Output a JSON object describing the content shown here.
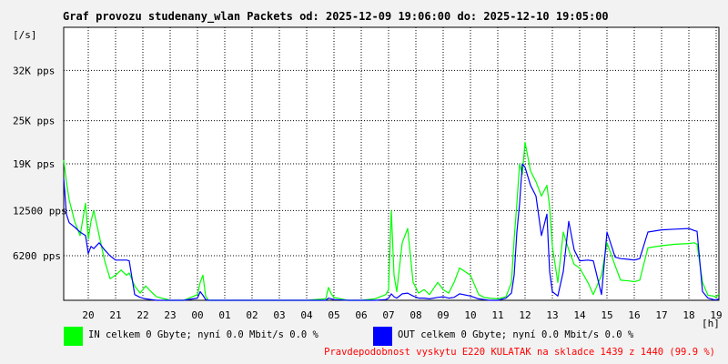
{
  "chart_data": {
    "type": "line",
    "title": "Graf provozu studenany_wlan Packets od: 2025-12-09 19:06:00 do: 2025-12-10 19:05:00",
    "ylabel": "[/s]",
    "xlabel": "[h]",
    "ylim": [
      0,
      38000
    ],
    "y_ticks": [
      {
        "value": 6200,
        "label": "6200 pps"
      },
      {
        "value": 12500,
        "label": "12500 pps"
      },
      {
        "value": 19000,
        "label": "19K pps"
      },
      {
        "value": 25000,
        "label": "25K pps"
      },
      {
        "value": 32000,
        "label": "32K pps"
      }
    ],
    "x_range_hours": [
      19.1,
      43.1
    ],
    "x_ticks": [
      "20",
      "21",
      "22",
      "23",
      "00",
      "01",
      "02",
      "03",
      "04",
      "05",
      "06",
      "07",
      "08",
      "09",
      "10",
      "11",
      "12",
      "13",
      "14",
      "15",
      "16",
      "17",
      "18",
      "19"
    ],
    "grid": true,
    "series": [
      {
        "name": "IN",
        "color": "#00ff00",
        "x": [
          19.1,
          19.2,
          19.3,
          19.5,
          19.7,
          19.9,
          20.0,
          20.1,
          20.2,
          20.4,
          20.6,
          20.8,
          21.0,
          21.2,
          21.4,
          21.5,
          21.7,
          21.9,
          22.1,
          22.3,
          22.5,
          23.0,
          23.5,
          24.0,
          24.1,
          24.2,
          24.3,
          24.4,
          25.0,
          26.0,
          27.0,
          28.0,
          28.7,
          28.8,
          28.9,
          29.0,
          29.5,
          30.0,
          30.5,
          30.9,
          31.0,
          31.1,
          31.2,
          31.3,
          31.5,
          31.7,
          31.9,
          32.1,
          32.3,
          32.5,
          32.8,
          33.0,
          33.2,
          33.4,
          33.6,
          34.0,
          34.3,
          34.5,
          34.7,
          35.0,
          35.3,
          35.5,
          35.6,
          35.7,
          35.8,
          35.9,
          36.0,
          36.2,
          36.4,
          36.6,
          36.8,
          36.9,
          37.0,
          37.2,
          37.4,
          37.6,
          37.8,
          38.0,
          38.3,
          38.5,
          38.8,
          39.0,
          39.3,
          39.5,
          39.8,
          40.0,
          40.1,
          40.2,
          40.5,
          41.0,
          41.5,
          42.0,
          42.2,
          42.3,
          42.5,
          42.7,
          42.9,
          43.0,
          43.1
        ],
        "y": [
          19500,
          16500,
          14000,
          11000,
          9000,
          13500,
          8500,
          11000,
          12500,
          9000,
          5500,
          3000,
          3500,
          4200,
          3500,
          3800,
          2000,
          1000,
          2000,
          1200,
          500,
          0,
          0,
          800,
          2500,
          3500,
          600,
          0,
          0,
          0,
          0,
          0,
          200,
          1800,
          900,
          400,
          0,
          0,
          200,
          800,
          1500,
          12500,
          3500,
          1200,
          8000,
          10000,
          2500,
          1000,
          1500,
          800,
          2500,
          1500,
          1000,
          2500,
          4500,
          3500,
          800,
          400,
          300,
          200,
          500,
          2500,
          8500,
          13500,
          19000,
          17500,
          22000,
          18000,
          16500,
          14500,
          16000,
          13000,
          7500,
          2500,
          9500,
          7000,
          5000,
          4500,
          2500,
          800,
          3500,
          8000,
          4800,
          2800,
          2700,
          2600,
          2700,
          2800,
          7300,
          7600,
          7800,
          7900,
          8000,
          7800,
          2500,
          700,
          600,
          400,
          900
        ]
      },
      {
        "name": "OUT",
        "color": "#0000ff",
        "x": [
          19.1,
          19.2,
          19.3,
          19.5,
          19.7,
          19.9,
          20.0,
          20.1,
          20.2,
          20.4,
          20.6,
          20.8,
          21.0,
          21.2,
          21.4,
          21.5,
          21.7,
          21.9,
          22.1,
          22.3,
          22.5,
          23.0,
          23.5,
          24.0,
          24.1,
          24.2,
          24.3,
          24.4,
          25.0,
          26.0,
          27.0,
          28.0,
          28.7,
          28.8,
          28.9,
          29.0,
          29.5,
          30.0,
          30.5,
          30.9,
          31.0,
          31.1,
          31.2,
          31.3,
          31.5,
          31.7,
          31.9,
          32.1,
          32.3,
          32.5,
          32.8,
          33.0,
          33.2,
          33.4,
          33.6,
          34.0,
          34.3,
          34.5,
          34.7,
          35.0,
          35.3,
          35.5,
          35.6,
          35.7,
          35.8,
          35.9,
          36.0,
          36.2,
          36.4,
          36.6,
          36.8,
          36.9,
          37.0,
          37.2,
          37.4,
          37.6,
          37.8,
          38.0,
          38.3,
          38.5,
          38.8,
          39.0,
          39.3,
          39.5,
          39.8,
          40.0,
          40.1,
          40.2,
          40.5,
          41.0,
          41.5,
          42.0,
          42.2,
          42.3,
          42.5,
          42.7,
          42.9,
          43.0,
          43.1
        ],
        "y": [
          17000,
          12000,
          10800,
          10200,
          9500,
          9000,
          6500,
          7500,
          7200,
          8000,
          7000,
          6200,
          5600,
          5600,
          5600,
          5500,
          800,
          400,
          200,
          100,
          0,
          0,
          0,
          300,
          1200,
          700,
          100,
          0,
          0,
          0,
          0,
          0,
          0,
          300,
          200,
          100,
          0,
          0,
          0,
          100,
          300,
          900,
          500,
          300,
          900,
          1000,
          600,
          300,
          300,
          200,
          400,
          500,
          300,
          400,
          900,
          600,
          200,
          100,
          0,
          0,
          300,
          1000,
          3500,
          9500,
          13500,
          19000,
          18500,
          16000,
          14500,
          9000,
          12000,
          4000,
          1200,
          600,
          4000,
          11000,
          7000,
          5500,
          5600,
          5500,
          800,
          9500,
          6000,
          5800,
          5700,
          5600,
          5700,
          5800,
          9500,
          9800,
          9900,
          10000,
          9700,
          9600,
          1200,
          300,
          100,
          50,
          200
        ]
      }
    ],
    "legend": [
      {
        "swatch_color": "#00ff00",
        "text": "IN celkem 0 Gbyte; nyní   0.0 Mbit/s 0.0 %"
      },
      {
        "swatch_color": "#0000ff",
        "text": "OUT celkem 0 Gbyte; nyní   0.0 Mbit/s 0.0 %"
      }
    ],
    "footnote": "Pravdepodobnost vyskytu E220 KULATAK na skladce 1439 z 1440 (99.9 %)"
  }
}
